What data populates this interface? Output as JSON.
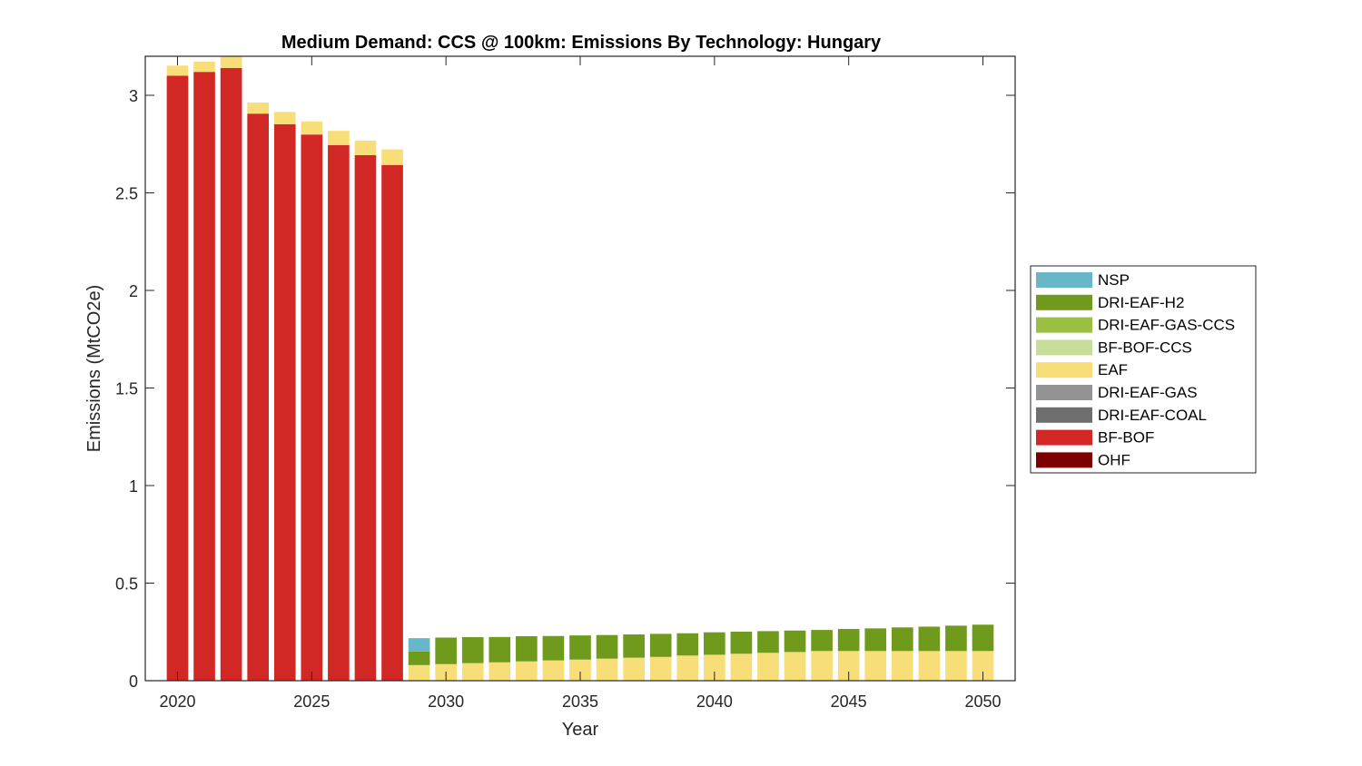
{
  "chart_data": {
    "type": "bar",
    "stacked": true,
    "title": "Medium Demand: CCS @ 100km: Emissions By Technology: Hungary",
    "xlabel": "Year",
    "ylabel": "Emissions (MtCO2e)",
    "xlim": [
      2018.8,
      2051.2
    ],
    "ylim": [
      0,
      3.2
    ],
    "xticks": [
      2020,
      2025,
      2030,
      2035,
      2040,
      2045,
      2050
    ],
    "xtick_labels": [
      "2020",
      "2025",
      "2030",
      "2035",
      "2040",
      "2045",
      "2050"
    ],
    "yticks": [
      0,
      0.5,
      1,
      1.5,
      2,
      2.5,
      3
    ],
    "ytick_labels": [
      "0",
      "0.5",
      "1",
      "1.5",
      "2",
      "2.5",
      "3"
    ],
    "grid": false,
    "legend_position": "right",
    "categories": [
      2020,
      2021,
      2022,
      2023,
      2024,
      2025,
      2026,
      2027,
      2028,
      2029,
      2030,
      2031,
      2032,
      2033,
      2034,
      2035,
      2036,
      2037,
      2038,
      2039,
      2040,
      2041,
      2042,
      2043,
      2044,
      2045,
      2046,
      2047,
      2048,
      2049,
      2050
    ],
    "series": [
      {
        "name": "OHF",
        "color": "#7D0000",
        "values": [
          0,
          0,
          0,
          0,
          0,
          0,
          0,
          0,
          0,
          0,
          0,
          0,
          0,
          0,
          0,
          0,
          0,
          0,
          0,
          0,
          0,
          0,
          0,
          0,
          0,
          0,
          0,
          0,
          0,
          0,
          0
        ]
      },
      {
        "name": "BF-BOF",
        "color": "#D12826",
        "values": [
          3.1,
          3.12,
          3.14,
          2.906,
          2.852,
          2.799,
          2.745,
          2.693,
          2.643,
          0,
          0,
          0,
          0,
          0,
          0,
          0,
          0,
          0,
          0,
          0,
          0,
          0,
          0,
          0,
          0,
          0,
          0,
          0,
          0,
          0,
          0
        ]
      },
      {
        "name": "DRI-EAF-COAL",
        "color": "#6E6E6E",
        "values": [
          0,
          0,
          0,
          0,
          0,
          0,
          0,
          0,
          0,
          0,
          0,
          0,
          0,
          0,
          0,
          0,
          0,
          0,
          0,
          0,
          0,
          0,
          0,
          0,
          0,
          0,
          0,
          0,
          0,
          0,
          0
        ]
      },
      {
        "name": "DRI-EAF-GAS",
        "color": "#939393",
        "values": [
          0,
          0,
          0,
          0,
          0,
          0,
          0,
          0,
          0,
          0,
          0,
          0,
          0,
          0,
          0,
          0,
          0,
          0,
          0,
          0,
          0,
          0,
          0,
          0,
          0,
          0,
          0,
          0,
          0,
          0,
          0
        ]
      },
      {
        "name": "EAF",
        "color": "#F7DE79",
        "values": [
          0.052,
          0.052,
          0.06,
          0.057,
          0.063,
          0.067,
          0.073,
          0.075,
          0.08,
          0.08,
          0.085,
          0.09,
          0.094,
          0.099,
          0.104,
          0.108,
          0.113,
          0.118,
          0.122,
          0.129,
          0.133,
          0.138,
          0.143,
          0.147,
          0.152,
          0.152,
          0.152,
          0.152,
          0.152,
          0.152,
          0.152
        ]
      },
      {
        "name": "BF-BOF-CCS",
        "color": "#C8DD99",
        "values": [
          0,
          0,
          0,
          0,
          0,
          0,
          0,
          0,
          0,
          0,
          0,
          0,
          0,
          0,
          0,
          0,
          0,
          0,
          0,
          0,
          0,
          0,
          0,
          0,
          0,
          0,
          0,
          0,
          0,
          0,
          0
        ]
      },
      {
        "name": "DRI-EAF-GAS-CCS",
        "color": "#9ABF42",
        "values": [
          0,
          0,
          0,
          0,
          0,
          0,
          0,
          0,
          0,
          0,
          0,
          0,
          0,
          0,
          0,
          0,
          0,
          0,
          0,
          0,
          0,
          0,
          0,
          0,
          0,
          0,
          0,
          0,
          0,
          0,
          0
        ]
      },
      {
        "name": "DRI-EAF-H2",
        "color": "#6F9A1B",
        "values": [
          0,
          0,
          0,
          0,
          0,
          0,
          0,
          0,
          0,
          0.07,
          0.136,
          0.133,
          0.13,
          0.129,
          0.125,
          0.124,
          0.121,
          0.119,
          0.118,
          0.114,
          0.115,
          0.113,
          0.111,
          0.11,
          0.108,
          0.113,
          0.116,
          0.121,
          0.125,
          0.13,
          0.135
        ]
      },
      {
        "name": "NSP",
        "color": "#67B7C9",
        "values": [
          0,
          0,
          0,
          0,
          0,
          0,
          0,
          0,
          0,
          0.068,
          0,
          0,
          0,
          0,
          0,
          0,
          0,
          0,
          0,
          0,
          0,
          0,
          0,
          0,
          0,
          0,
          0,
          0,
          0,
          0,
          0
        ]
      }
    ],
    "legend": [
      "NSP",
      "DRI-EAF-H2",
      "DRI-EAF-GAS-CCS",
      "BF-BOF-CCS",
      "EAF",
      "DRI-EAF-GAS",
      "DRI-EAF-COAL",
      "BF-BOF",
      "OHF"
    ]
  }
}
